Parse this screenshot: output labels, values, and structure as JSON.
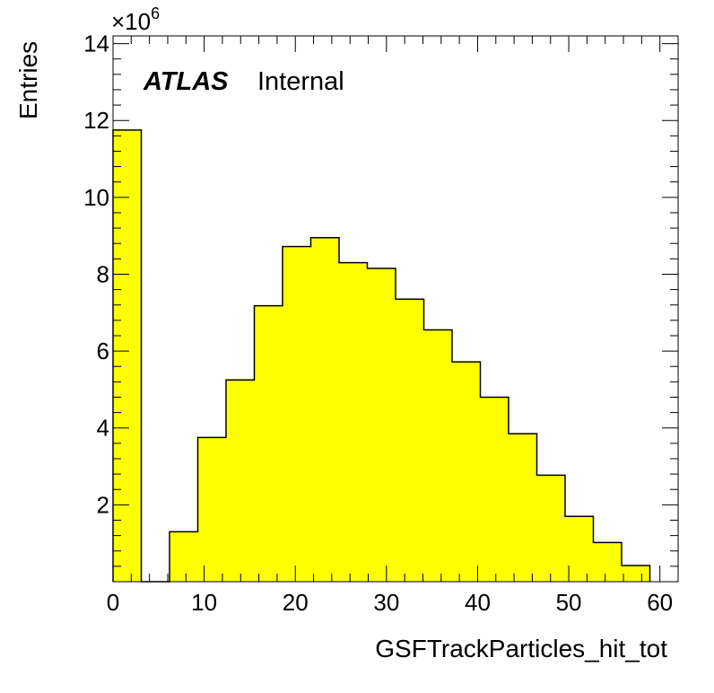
{
  "chart_data": {
    "type": "bar",
    "style": "step-histogram",
    "xlabel": "GSFTrackParticles_hit_tot",
    "ylabel": "Entries",
    "y_multiplier_base": "×10",
    "y_multiplier_exp": "6",
    "label_bold": "ATLAS",
    "label_normal": "Internal",
    "xlim": [
      0,
      62
    ],
    "ylim": [
      0,
      14.2
    ],
    "x_ticks": [
      0,
      10,
      20,
      30,
      40,
      50,
      60
    ],
    "y_ticks": [
      2,
      4,
      6,
      8,
      10,
      12,
      14
    ],
    "fill_color": "#ffff00",
    "bin_width": 3.1,
    "bins": [
      {
        "x0": 0.0,
        "value": 11.75
      },
      {
        "x0": 3.1,
        "value": 0.0
      },
      {
        "x0": 6.2,
        "value": 1.3
      },
      {
        "x0": 9.3,
        "value": 3.75
      },
      {
        "x0": 12.4,
        "value": 5.25
      },
      {
        "x0": 15.5,
        "value": 7.18
      },
      {
        "x0": 18.6,
        "value": 8.72
      },
      {
        "x0": 21.7,
        "value": 8.95
      },
      {
        "x0": 24.8,
        "value": 8.3
      },
      {
        "x0": 27.9,
        "value": 8.15
      },
      {
        "x0": 31.0,
        "value": 7.35
      },
      {
        "x0": 34.1,
        "value": 6.55
      },
      {
        "x0": 37.2,
        "value": 5.72
      },
      {
        "x0": 40.3,
        "value": 4.8
      },
      {
        "x0": 43.4,
        "value": 3.85
      },
      {
        "x0": 46.5,
        "value": 2.77
      },
      {
        "x0": 49.6,
        "value": 1.7
      },
      {
        "x0": 52.7,
        "value": 1.02
      },
      {
        "x0": 55.8,
        "value": 0.42
      }
    ]
  }
}
